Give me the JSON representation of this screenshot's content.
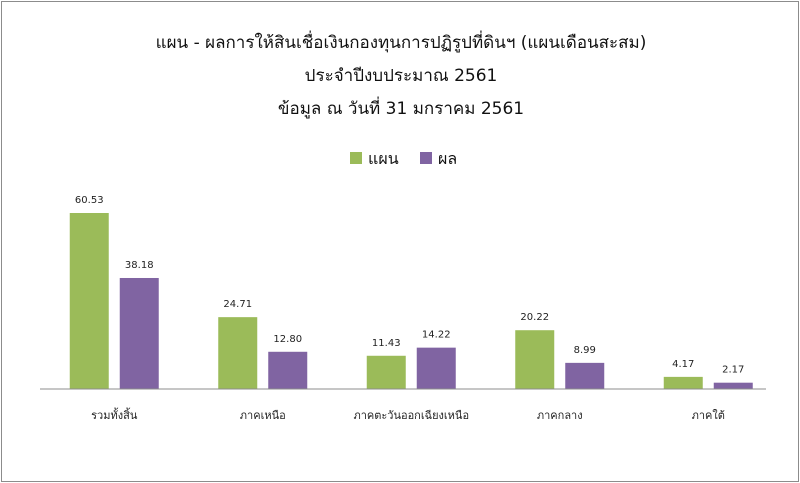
{
  "chart_data": {
    "type": "bar",
    "title_lines": [
      "แผน - ผลการให้สินเชื่อเงินกองทุนการปฏิรูปที่ดินฯ  (แผนเดือนสะสม)",
      "ประจำปีงบประมาณ 2561",
      "ข้อมูล ณ วันที่ 31 มกราคม 2561"
    ],
    "categories": [
      "รวมทั้งสิ้น",
      "ภาคเหนือ",
      "ภาคตะวันออกเฉียงเหนือ",
      "ภาคกลาง",
      "ภาคใต้"
    ],
    "series": [
      {
        "name": "แผน",
        "color": "#9bbb59",
        "values": [
          60.53,
          24.71,
          11.43,
          20.22,
          4.17
        ],
        "labels": [
          "60.53",
          "24.71",
          "11.43",
          "20.22",
          "4.17"
        ]
      },
      {
        "name": "ผล",
        "color": "#8064a2",
        "values": [
          38.18,
          12.8,
          14.22,
          8.99,
          2.17
        ],
        "labels": [
          "38.18",
          "12.80",
          "14.22",
          "8.99",
          "2.17"
        ]
      }
    ],
    "ylim": [
      0,
      60.53
    ],
    "grid": false,
    "legend_position": "top-center",
    "axis_color": "#8c8c8c"
  }
}
